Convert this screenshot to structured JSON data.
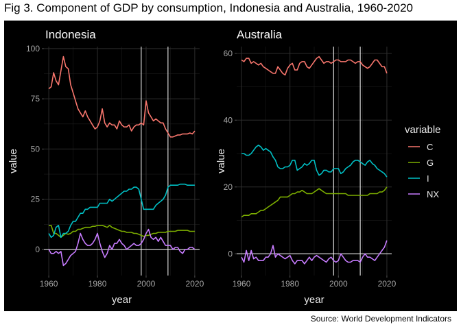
{
  "title": "Fig 3. Component of GDP by consumption, Indonesia and Australia, 1960-2020",
  "source": "Source: World Development Indicators",
  "legend": {
    "title": "variable",
    "items": [
      {
        "label": "C",
        "color": "#F8766D"
      },
      {
        "label": "G",
        "color": "#7CAE00"
      },
      {
        "label": "I",
        "color": "#00BFC4"
      },
      {
        "label": "NX",
        "color": "#C77CFF"
      }
    ]
  },
  "chart_data": [
    {
      "type": "line",
      "title": "Indonesia",
      "xlabel": "year",
      "ylabel": "value",
      "xlim": [
        1958,
        2022
      ],
      "ylim": [
        -13,
        101
      ],
      "xticks": [
        1960,
        1980,
        2000,
        2020
      ],
      "yticks": [
        0,
        25,
        50,
        75,
        100
      ],
      "hlines": [
        0
      ],
      "vlines": [
        1998,
        2009
      ],
      "x": [
        1960,
        1961,
        1962,
        1963,
        1964,
        1965,
        1966,
        1967,
        1968,
        1969,
        1970,
        1971,
        1972,
        1973,
        1974,
        1975,
        1976,
        1977,
        1978,
        1979,
        1980,
        1981,
        1982,
        1983,
        1984,
        1985,
        1986,
        1987,
        1988,
        1989,
        1990,
        1991,
        1992,
        1993,
        1994,
        1995,
        1996,
        1997,
        1998,
        1999,
        2000,
        2001,
        2002,
        2003,
        2004,
        2005,
        2006,
        2007,
        2008,
        2009,
        2010,
        2011,
        2012,
        2013,
        2014,
        2015,
        2016,
        2017,
        2018,
        2019,
        2020
      ],
      "series": [
        {
          "name": "C",
          "values": [
            80,
            81,
            88,
            84,
            82,
            89,
            96,
            91,
            90,
            82,
            78,
            74,
            70,
            68,
            66,
            69,
            66,
            64,
            62,
            60,
            61,
            64,
            70,
            63,
            61,
            63,
            62,
            62,
            60,
            64,
            62,
            61,
            61,
            62,
            59,
            61,
            62,
            62,
            63,
            62,
            74,
            68,
            66,
            64,
            65,
            64,
            63,
            63,
            60,
            58,
            56,
            56,
            56.5,
            57,
            57,
            57.5,
            57.5,
            57.5,
            58,
            57.5,
            59
          ]
        },
        {
          "name": "G",
          "values": [
            12,
            12,
            8,
            8,
            7,
            6,
            7,
            8,
            7.5,
            8,
            9,
            9,
            10,
            10,
            10.5,
            11,
            11,
            11,
            11.5,
            11.5,
            12,
            12,
            12,
            11.5,
            11,
            12,
            11,
            10.5,
            10,
            9.5,
            9,
            9,
            8.5,
            8.5,
            8.5,
            8,
            8,
            7.5,
            7,
            6.5,
            7,
            7,
            7.5,
            8,
            8,
            8.5,
            8.5,
            8.5,
            8.5,
            9,
            9,
            9,
            9,
            9.5,
            9.5,
            9.5,
            9.5,
            9.5,
            9,
            9,
            9
          ]
        },
        {
          "name": "I",
          "values": [
            8,
            6,
            7,
            11,
            12,
            6,
            8,
            8,
            9,
            12,
            14,
            14,
            16,
            18,
            18,
            20,
            20,
            21,
            21,
            21,
            21,
            23,
            23,
            23,
            23,
            25,
            24,
            25,
            26,
            27,
            28,
            29,
            29,
            30,
            30,
            31,
            31,
            30,
            25,
            20,
            20,
            20,
            20,
            20,
            22,
            23,
            24,
            25,
            27,
            31,
            32,
            32,
            32,
            32,
            32.5,
            32.5,
            32.5,
            32,
            32,
            32,
            32
          ]
        },
        {
          "name": "NX",
          "values": [
            0,
            -2,
            -2,
            -1,
            -2,
            -1,
            -8,
            -7,
            -5,
            -3,
            -2,
            -1,
            3,
            8,
            5,
            3,
            2,
            2,
            3,
            5,
            8,
            3,
            -1,
            -4,
            -2,
            2,
            0,
            3,
            3,
            5,
            3,
            2,
            0,
            1,
            2,
            3,
            2,
            2,
            3,
            5,
            8,
            10,
            6,
            5,
            6,
            4,
            6,
            4,
            2,
            2,
            2,
            0,
            1,
            1,
            -1,
            -2,
            0,
            0,
            1,
            1,
            0
          ]
        }
      ]
    },
    {
      "type": "line",
      "title": "Australia",
      "xlabel": "year",
      "ylabel": "value",
      "xlim": [
        1958,
        2022
      ],
      "ylim": [
        -6.5,
        62
      ],
      "xticks": [
        1960,
        1980,
        2000,
        2020
      ],
      "yticks": [
        0,
        20,
        40,
        60
      ],
      "hlines": [
        0
      ],
      "vlines": [
        1998,
        2009
      ],
      "x": [
        1960,
        1961,
        1962,
        1963,
        1964,
        1965,
        1966,
        1967,
        1968,
        1969,
        1970,
        1971,
        1972,
        1973,
        1974,
        1975,
        1976,
        1977,
        1978,
        1979,
        1980,
        1981,
        1982,
        1983,
        1984,
        1985,
        1986,
        1987,
        1988,
        1989,
        1990,
        1991,
        1992,
        1993,
        1994,
        1995,
        1996,
        1997,
        1998,
        1999,
        2000,
        2001,
        2002,
        2003,
        2004,
        2005,
        2006,
        2007,
        2008,
        2009,
        2010,
        2011,
        2012,
        2013,
        2014,
        2015,
        2016,
        2017,
        2018,
        2019,
        2020
      ],
      "series": [
        {
          "name": "C",
          "values": [
            58,
            57.5,
            58.5,
            58.5,
            57,
            57.5,
            57,
            56.5,
            57,
            56,
            55.5,
            55,
            54.5,
            54,
            54,
            56,
            55,
            54,
            53.5,
            55.5,
            56.5,
            57,
            55,
            55,
            57,
            57.5,
            57.5,
            56,
            55.5,
            56.5,
            57.5,
            58.5,
            59,
            58,
            57,
            57.5,
            57.5,
            57,
            57.5,
            58,
            58,
            57.5,
            57.5,
            57.5,
            58,
            58,
            57.5,
            57,
            57.5,
            57.5,
            56.5,
            56,
            55.5,
            56,
            57,
            58,
            58,
            57,
            56,
            56,
            54
          ]
        },
        {
          "name": "G",
          "values": [
            11,
            11.5,
            11.5,
            11.5,
            12,
            12,
            12,
            12.5,
            13,
            13,
            13.5,
            14,
            14.5,
            15,
            15.5,
            16,
            17,
            17,
            17,
            17,
            17.5,
            18,
            18,
            18.5,
            18.5,
            19,
            18.5,
            18,
            18,
            18,
            18.5,
            19,
            19.5,
            19,
            18.5,
            18,
            18,
            18,
            18,
            18,
            18,
            18,
            18,
            18,
            17.5,
            17.5,
            17.5,
            17.5,
            17.5,
            17.5,
            17.5,
            17.5,
            17.5,
            18,
            18,
            18,
            18,
            18.5,
            18.5,
            19,
            20
          ]
        },
        {
          "name": "I",
          "values": [
            30,
            30,
            29.5,
            29.5,
            30,
            31,
            32,
            32.5,
            32,
            31,
            31.5,
            31,
            30.5,
            29,
            28,
            26,
            25.5,
            25.5,
            26,
            26,
            26.5,
            28,
            28,
            25,
            25.5,
            26,
            27,
            26.5,
            27,
            28,
            28,
            25,
            23.5,
            24,
            25,
            25,
            24.5,
            24.5,
            25.5,
            25.5,
            25.5,
            24,
            24.5,
            25.5,
            26,
            26.5,
            27.5,
            28,
            28,
            27.5,
            27,
            26.5,
            27.5,
            28,
            27,
            26.5,
            25.5,
            25,
            24.5,
            24,
            23
          ]
        },
        {
          "name": "NX",
          "values": [
            -1,
            -2.5,
            1,
            -2,
            1,
            -1.5,
            -1,
            -2,
            -2,
            -2,
            -1,
            -1,
            0,
            2.5,
            -1,
            0,
            -0.5,
            -1,
            -1.5,
            -1,
            -0.5,
            -2,
            -3,
            -2,
            -2,
            -2,
            -3,
            -2,
            -1,
            -2,
            -1,
            -0.5,
            -1,
            -1.5,
            -2,
            -2.5,
            -1.5,
            -1,
            -2,
            -2.5,
            -2,
            0,
            -1,
            -2,
            -2.5,
            -2.5,
            -2,
            -2,
            -2,
            -2.5,
            -1,
            0,
            -1,
            -1,
            -1.5,
            -2,
            -1,
            0,
            1,
            2,
            4
          ]
        }
      ]
    }
  ]
}
